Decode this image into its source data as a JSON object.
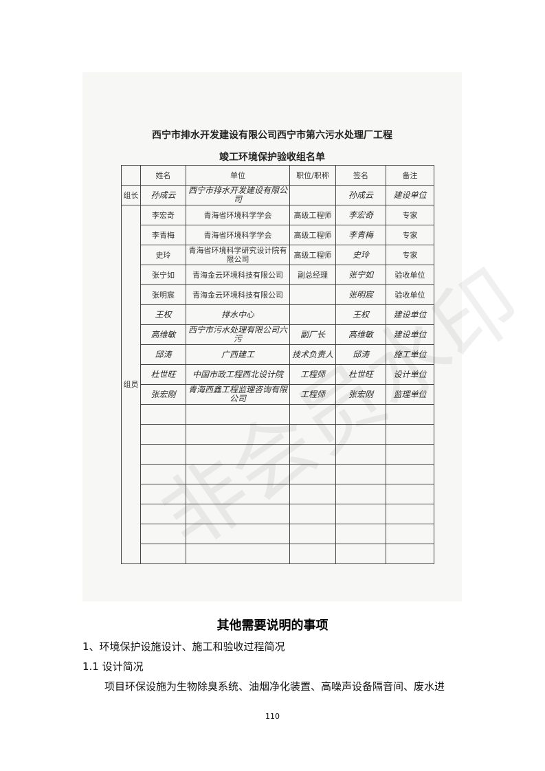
{
  "scan": {
    "title_line1": "西宁市排水开发建设有限公司西宁市第六污水处理厂工程",
    "title_line2": "竣工环境保护验收组名单",
    "headers": [
      "",
      "姓名",
      "单位",
      "职位/职称",
      "签名",
      "备注"
    ],
    "leader_label": "组长",
    "member_label": "组员",
    "leader": {
      "name": "孙成云",
      "unit": "西宁市排水开发建设有限公司",
      "title": "",
      "signature": "孙成云",
      "note": "建设单位"
    },
    "members": [
      {
        "name": "李宏奇",
        "unit": "青海省环境科学学会",
        "title": "高级工程师",
        "signature": "李宏奇",
        "note": "专家"
      },
      {
        "name": "李青梅",
        "unit": "青海省环境科学学会",
        "title": "高级工程师",
        "signature": "李青梅",
        "note": "专家"
      },
      {
        "name": "史玲",
        "unit": "青海省环境科学研究设计院有限公司",
        "title": "高级工程师",
        "signature": "史玲",
        "note": "专家"
      },
      {
        "name": "张宁如",
        "unit": "青海金云环境科技有限公司",
        "title": "副总经理",
        "signature": "张宁如",
        "note": "验收单位"
      },
      {
        "name": "张明宸",
        "unit": "青海金云环境科技有限公司",
        "title": "",
        "signature": "张明宸",
        "note": "验收单位"
      },
      {
        "name": "王权",
        "unit": "排水中心",
        "title": "",
        "signature": "王权",
        "note": "建设单位"
      },
      {
        "name": "高维敏",
        "unit": "西宁市污水处理有限公司六污",
        "title": "副厂长",
        "signature": "高维敏",
        "note": "建设单位"
      },
      {
        "name": "邱涛",
        "unit": "广西建工",
        "title": "技术负责人",
        "signature": "邱涛",
        "note": "施工单位"
      },
      {
        "name": "杜世旺",
        "unit": "中国市政工程西北设计院",
        "title": "工程师",
        "signature": "杜世旺",
        "note": "设计单位"
      },
      {
        "name": "张宏刚",
        "unit": "青海西鑫工程监理咨询有限公司",
        "title": "工程师",
        "signature": "张宏刚",
        "note": "监理单位"
      }
    ],
    "watermark": "非会员水印"
  },
  "section_title": "其他需要说明的事项",
  "heading1": "1、环境保护设施设计、施工和验收过程简况",
  "heading2": "1.1 设计简况",
  "paragraph": "项目环保设施为生物除臭系统、油烟净化装置、高噪声设备隔音间、废水进",
  "page_number": "110"
}
